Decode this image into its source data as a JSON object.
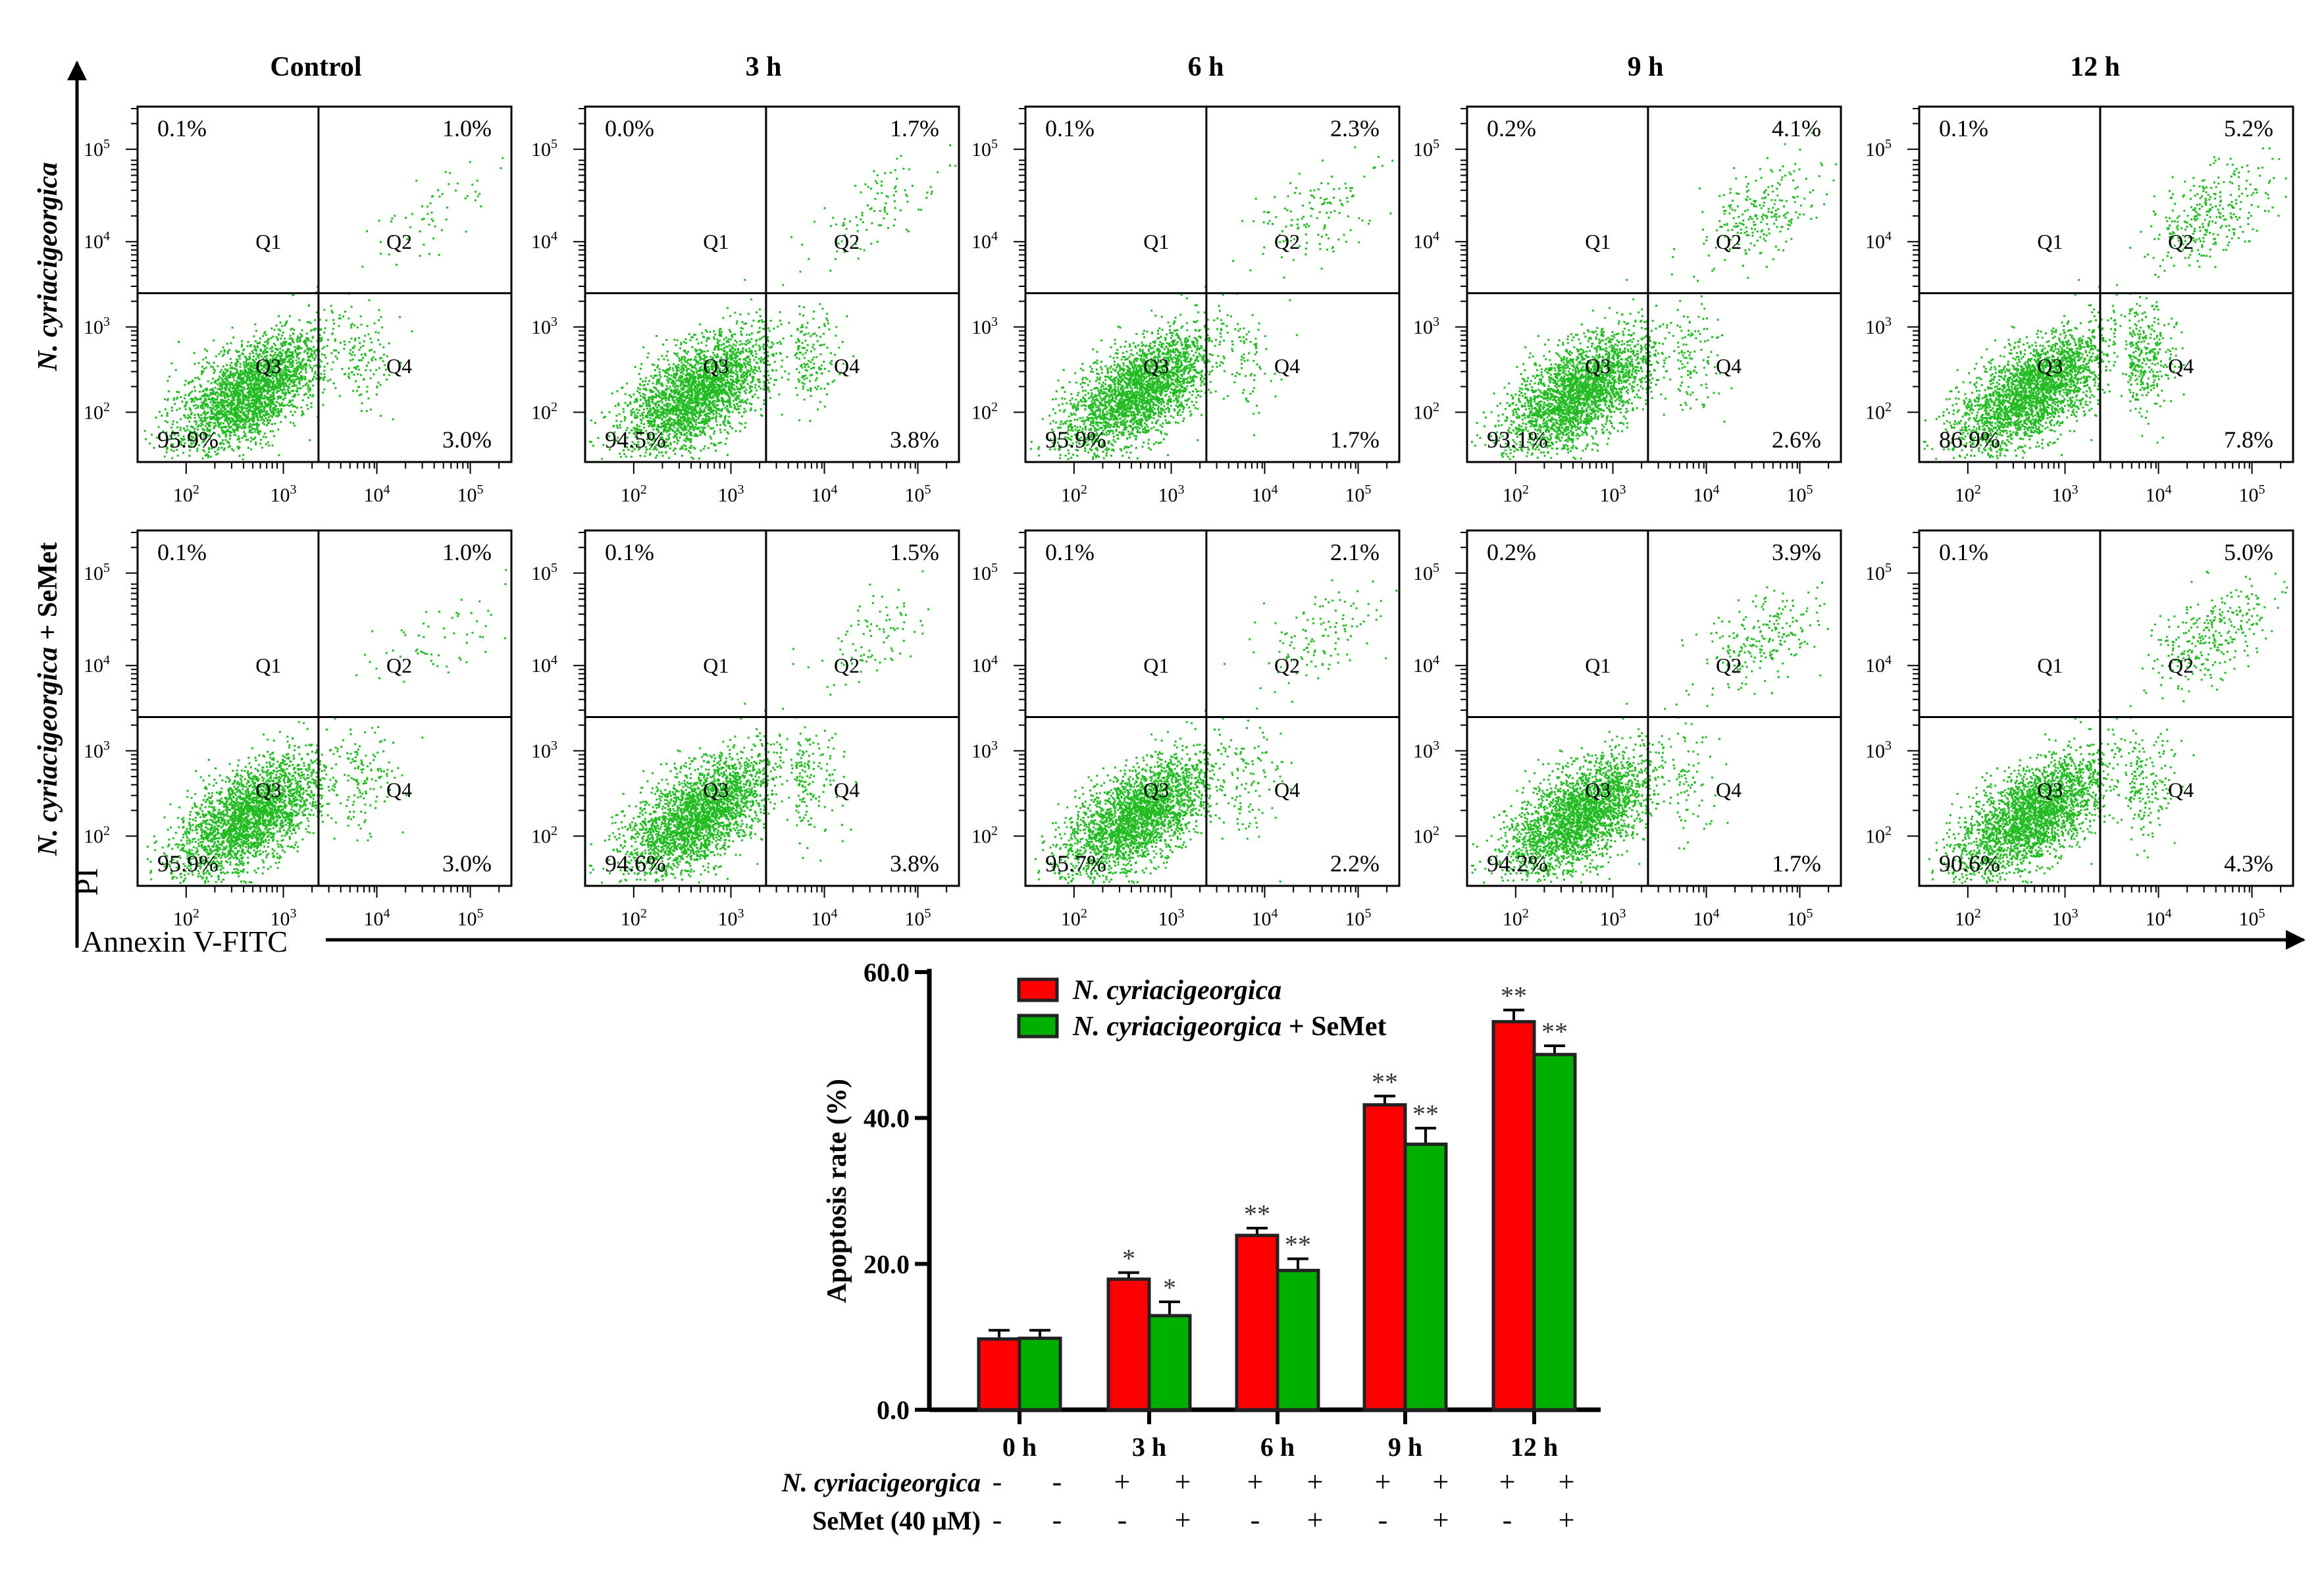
{
  "colors": {
    "red": "#ff0000",
    "green": "#00b000",
    "dots": "#22bb22",
    "axis": "#000000"
  },
  "flow": {
    "column_titles": [
      "Control",
      "3 h",
      "6 h",
      "9 h",
      "12 h"
    ],
    "row_labels": [
      "N. cyriacigeorgica",
      "N. cyriacigeorgica + SeMet"
    ],
    "y_axis_label": "PI",
    "x_axis_label": "Annexin V-FITC",
    "quadrant_names": [
      "Q1",
      "Q2",
      "Q3",
      "Q4"
    ],
    "tick_base": "10",
    "tick_exponents": [
      "2",
      "3",
      "4",
      "5"
    ],
    "panels": [
      [
        [
          0.1,
          1.0,
          95.9,
          3.0
        ],
        [
          0.0,
          1.7,
          94.5,
          3.8
        ],
        [
          0.1,
          2.3,
          95.9,
          1.7
        ],
        [
          0.2,
          4.1,
          93.1,
          2.6
        ],
        [
          0.1,
          5.2,
          86.9,
          7.8
        ]
      ],
      [
        [
          0.1,
          1.0,
          95.9,
          3.0
        ],
        [
          0.1,
          1.5,
          94.6,
          3.8
        ],
        [
          0.1,
          2.1,
          95.7,
          2.2
        ],
        [
          0.2,
          3.9,
          94.2,
          1.7
        ],
        [
          0.1,
          5.0,
          90.6,
          4.3
        ]
      ]
    ]
  },
  "chart_data": {
    "type": "bar",
    "title": "",
    "xlabel": "",
    "ylabel": "Apoptosis rate (%)",
    "ylim": [
      0,
      60
    ],
    "yticks": [
      "0.0",
      "20.0",
      "40.0",
      "60.0"
    ],
    "ytick_values": [
      0,
      20,
      40,
      60
    ],
    "categories": [
      "0 h",
      "3 h",
      "6 h",
      "9 h",
      "12 h"
    ],
    "legend_position": "top",
    "series": [
      {
        "name": "N. cyriacigeorgica",
        "color": "#ff0000",
        "values": [
          9.7,
          17.9,
          23.9,
          41.8,
          53.2
        ],
        "errors": [
          1.2,
          0.9,
          1.0,
          1.2,
          1.6
        ],
        "significance": [
          "",
          "*",
          "**",
          "**",
          "**"
        ]
      },
      {
        "name": "N. cyriacigeorgica + SeMet",
        "color": "#00b000",
        "values": [
          9.8,
          12.9,
          19.1,
          36.4,
          48.7
        ],
        "errors": [
          1.1,
          1.9,
          1.6,
          2.2,
          1.2
        ],
        "significance": [
          "",
          "*",
          "**",
          "**",
          "**"
        ]
      }
    ],
    "legend_labels": [
      {
        "italic": "N. cyriacigeorgica",
        "rest": ""
      },
      {
        "italic": "N. cyriacigeorgica",
        "rest": " + SeMet"
      }
    ],
    "treatment_rows": [
      {
        "label": "N. cyriacigeorgica",
        "signs": [
          "-",
          "-",
          "+",
          "+",
          "+",
          "+",
          "+",
          "+",
          "+",
          "+"
        ]
      },
      {
        "label": "SeMet (40 μM)",
        "signs": [
          "-",
          "-",
          "-",
          "+",
          "-",
          "+",
          "-",
          "+",
          "-",
          "+"
        ]
      }
    ]
  }
}
